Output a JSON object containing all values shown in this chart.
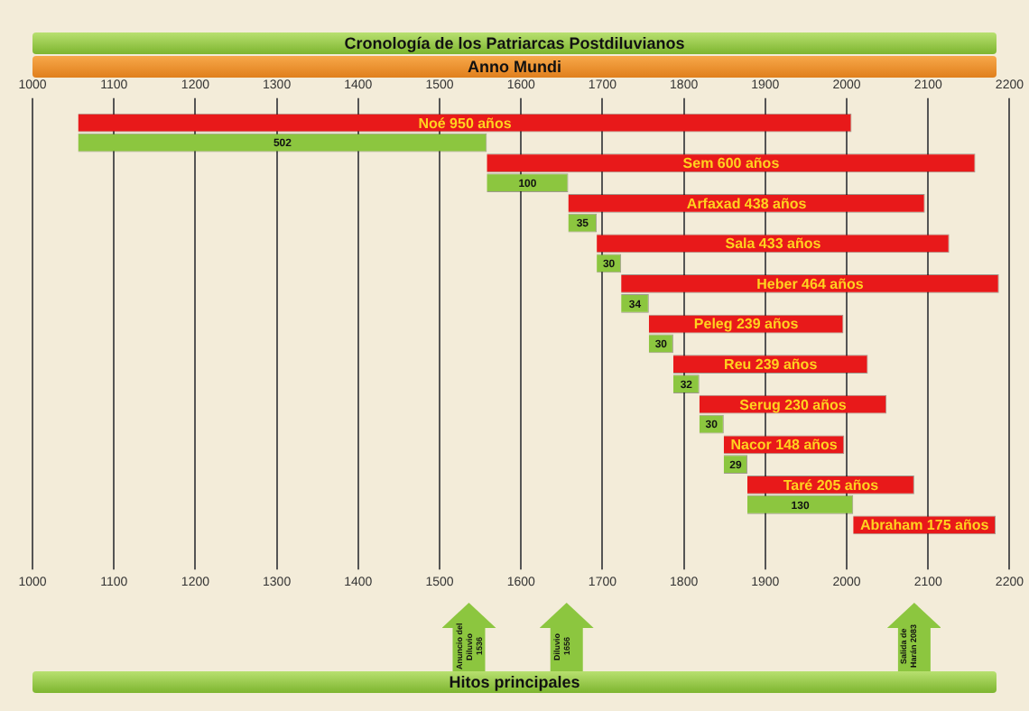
{
  "chart_data": {
    "type": "bar",
    "orientation": "horizontal",
    "title": "Cronología de los Patriarcas Postdiluvianos",
    "xlabel": "Anno Mundi",
    "categories": [
      null,
      null,
      null,
      null,
      null,
      null,
      null,
      null,
      null,
      null,
      null
    ],
    "series": [
      {
        "color": "#e8191a",
        "base": [
          1056,
          1558,
          1658,
          1693,
          1723,
          1757,
          1787,
          1819,
          1849,
          1878,
          2008
        ],
        "values": [
          950,
          600,
          438,
          433,
          464,
          239,
          239,
          230,
          148,
          205,
          175
        ],
        "value_labels": [
          "Noé 950 años",
          "Sem 600 años",
          "Arfaxad 438 años",
          "Sala 433 años",
          "Heber 464 años",
          "Peleg 239 años",
          "Reu 239 años",
          "Serug 230 años",
          "Nacor 148 años",
          "Taré 205 años",
          "Abraham 175 años"
        ]
      },
      {
        "color": "#8cc63f",
        "base": [
          1056,
          1558,
          1658,
          1693,
          1723,
          1757,
          1787,
          1819,
          1849,
          1878,
          null
        ],
        "values": [
          502,
          100,
          35,
          30,
          34,
          30,
          32,
          30,
          29,
          130,
          null
        ],
        "data_labels": true
      }
    ],
    "xlim": [
      1000,
      2200
    ],
    "xticks": [
      1000,
      1100,
      1200,
      1300,
      1400,
      1500,
      1600,
      1700,
      1800,
      1900,
      2000,
      2100,
      2200
    ],
    "x2lim": [
      1000,
      2200
    ],
    "x2ticks": [
      1000,
      1100,
      1200,
      1300,
      1400,
      1500,
      1600,
      1700,
      1800,
      1900,
      2000,
      2100,
      2200
    ],
    "grid": "x",
    "legend": false,
    "tick_labels": "x",
    "ref_lines": [
      {
        "axis": "x",
        "value": 1536,
        "label": "Anuncio del Diluvio 1536",
        "color": "#8cc63f"
      },
      {
        "axis": "x",
        "value": 1656,
        "label": "Diluvio 1656",
        "color": "#8cc63f"
      },
      {
        "axis": "x",
        "value": 2083,
        "label": "Salida de Harán 2083",
        "color": "#8cc63f"
      }
    ],
    "annotations": [
      "Hitos principales"
    ]
  }
}
